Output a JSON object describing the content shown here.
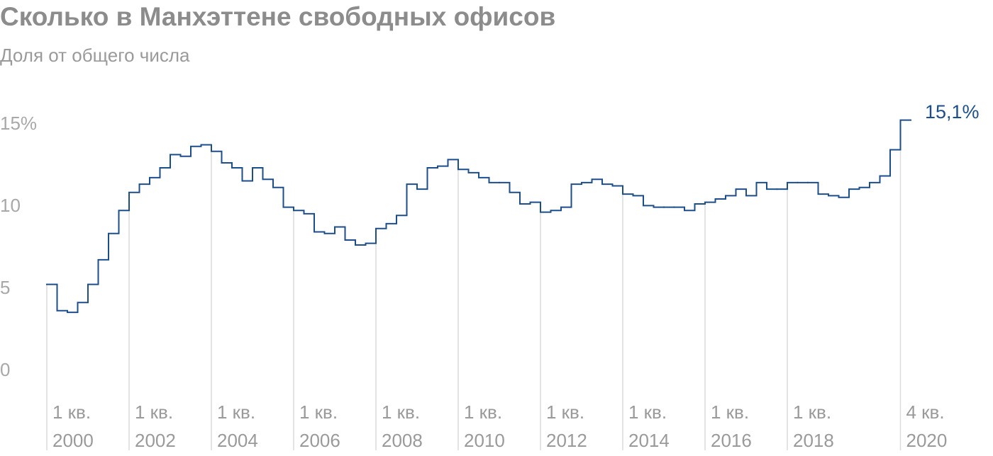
{
  "chart_data": {
    "type": "step",
    "title": "Сколько в Манхэттене свободных офисов",
    "subtitle": "Доля от общего числа",
    "categories": [
      [
        "1 кв.",
        "2000"
      ],
      null,
      null,
      null,
      null,
      null,
      null,
      null,
      [
        "1 кв.",
        "2002"
      ],
      null,
      null,
      null,
      null,
      null,
      null,
      null,
      [
        "1 кв.",
        "2004"
      ],
      null,
      null,
      null,
      null,
      null,
      null,
      null,
      [
        "1 кв.",
        "2006"
      ],
      null,
      null,
      null,
      null,
      null,
      null,
      null,
      [
        "1 кв.",
        "2008"
      ],
      null,
      null,
      null,
      null,
      null,
      null,
      null,
      [
        "1 кв.",
        "2010"
      ],
      null,
      null,
      null,
      null,
      null,
      null,
      null,
      [
        "1 кв.",
        "2012"
      ],
      null,
      null,
      null,
      null,
      null,
      null,
      null,
      [
        "1 кв.",
        "2014"
      ],
      null,
      null,
      null,
      null,
      null,
      null,
      null,
      [
        "1 кв.",
        "2016"
      ],
      null,
      null,
      null,
      null,
      null,
      null,
      null,
      [
        "1 кв.",
        "2018"
      ],
      null,
      null,
      null,
      null,
      null,
      null,
      null,
      null,
      null,
      null,
      [
        "4 кв.",
        "2020"
      ]
    ],
    "values": [
      5.1,
      3.5,
      3.4,
      4.0,
      5.1,
      6.6,
      8.2,
      9.6,
      10.7,
      11.2,
      11.6,
      12.2,
      13.0,
      12.9,
      13.5,
      13.6,
      13.2,
      12.5,
      12.2,
      11.4,
      12.2,
      11.5,
      11.0,
      9.8,
      9.6,
      9.4,
      8.3,
      8.2,
      8.6,
      7.8,
      7.5,
      7.6,
      8.5,
      8.8,
      9.3,
      11.2,
      10.9,
      12.2,
      12.3,
      12.7,
      12.1,
      11.9,
      11.6,
      11.3,
      11.3,
      10.7,
      10.0,
      10.1,
      9.5,
      9.6,
      9.8,
      11.2,
      11.3,
      11.5,
      11.2,
      11.1,
      10.6,
      10.5,
      9.9,
      9.8,
      9.8,
      9.8,
      9.6,
      10.0,
      10.1,
      10.3,
      10.5,
      10.9,
      10.5,
      11.3,
      10.9,
      10.9,
      11.3,
      11.3,
      11.3,
      10.6,
      10.5,
      10.4,
      10.9,
      11.0,
      11.3,
      11.7,
      13.3,
      15.1
    ],
    "value_labels": [
      null,
      null,
      null,
      null,
      null,
      null,
      null,
      null,
      null,
      null,
      null,
      null,
      null,
      null,
      null,
      null,
      null,
      null,
      null,
      null,
      null,
      null,
      null,
      null,
      null,
      null,
      null,
      null,
      null,
      null,
      null,
      null,
      null,
      null,
      null,
      null,
      null,
      null,
      null,
      null,
      null,
      null,
      null,
      null,
      null,
      null,
      null,
      null,
      null,
      null,
      null,
      null,
      null,
      null,
      null,
      null,
      null,
      null,
      null,
      null,
      null,
      null,
      null,
      null,
      null,
      null,
      null,
      null,
      null,
      null,
      null,
      null,
      null,
      null,
      null,
      null,
      null,
      null,
      null,
      null,
      null,
      null,
      null,
      "15,1%"
    ],
    "color": "#1c4e8c",
    "ylim": [
      0,
      16
    ],
    "yticks": [
      0,
      5,
      10,
      {
        "value": 15,
        "label": "15%"
      }
    ]
  }
}
